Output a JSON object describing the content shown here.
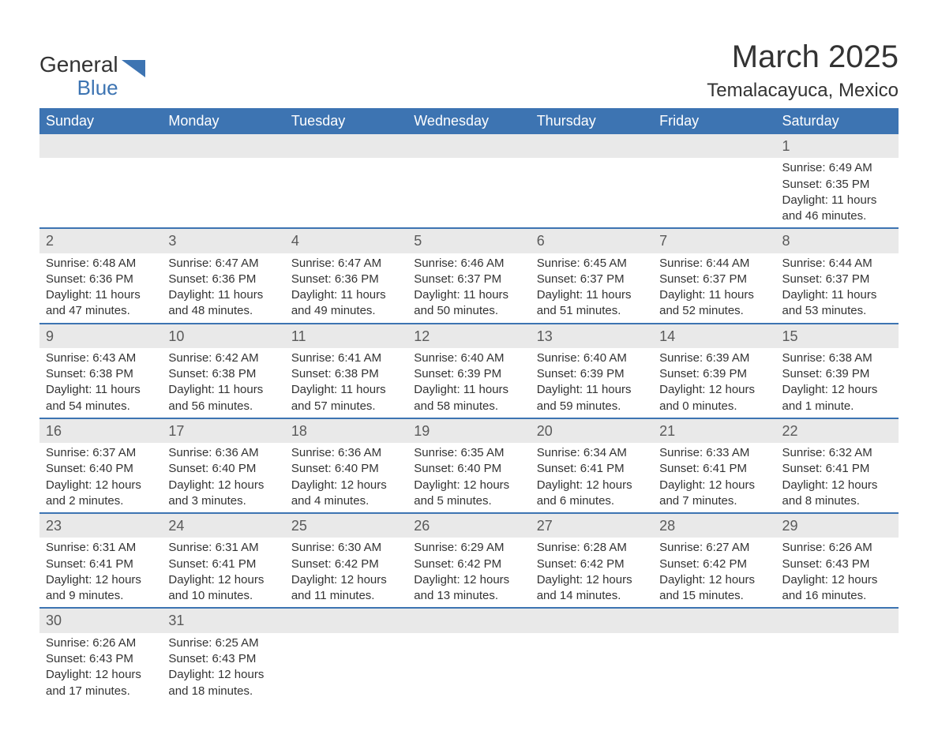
{
  "logo": {
    "general": "General",
    "blue": "Blue"
  },
  "title": "March 2025",
  "location": "Temalacayuca, Mexico",
  "colors": {
    "header_bg": "#3d74b2",
    "header_text": "#ffffff",
    "daynum_bg": "#e9e9e9",
    "border": "#3d74b2",
    "text": "#333333"
  },
  "day_labels": [
    "Sunday",
    "Monday",
    "Tuesday",
    "Wednesday",
    "Thursday",
    "Friday",
    "Saturday"
  ],
  "weeks": [
    [
      null,
      null,
      null,
      null,
      null,
      null,
      {
        "n": "1",
        "sunrise": "Sunrise: 6:49 AM",
        "sunset": "Sunset: 6:35 PM",
        "day1": "Daylight: 11 hours",
        "day2": "and 46 minutes."
      }
    ],
    [
      {
        "n": "2",
        "sunrise": "Sunrise: 6:48 AM",
        "sunset": "Sunset: 6:36 PM",
        "day1": "Daylight: 11 hours",
        "day2": "and 47 minutes."
      },
      {
        "n": "3",
        "sunrise": "Sunrise: 6:47 AM",
        "sunset": "Sunset: 6:36 PM",
        "day1": "Daylight: 11 hours",
        "day2": "and 48 minutes."
      },
      {
        "n": "4",
        "sunrise": "Sunrise: 6:47 AM",
        "sunset": "Sunset: 6:36 PM",
        "day1": "Daylight: 11 hours",
        "day2": "and 49 minutes."
      },
      {
        "n": "5",
        "sunrise": "Sunrise: 6:46 AM",
        "sunset": "Sunset: 6:37 PM",
        "day1": "Daylight: 11 hours",
        "day2": "and 50 minutes."
      },
      {
        "n": "6",
        "sunrise": "Sunrise: 6:45 AM",
        "sunset": "Sunset: 6:37 PM",
        "day1": "Daylight: 11 hours",
        "day2": "and 51 minutes."
      },
      {
        "n": "7",
        "sunrise": "Sunrise: 6:44 AM",
        "sunset": "Sunset: 6:37 PM",
        "day1": "Daylight: 11 hours",
        "day2": "and 52 minutes."
      },
      {
        "n": "8",
        "sunrise": "Sunrise: 6:44 AM",
        "sunset": "Sunset: 6:37 PM",
        "day1": "Daylight: 11 hours",
        "day2": "and 53 minutes."
      }
    ],
    [
      {
        "n": "9",
        "sunrise": "Sunrise: 6:43 AM",
        "sunset": "Sunset: 6:38 PM",
        "day1": "Daylight: 11 hours",
        "day2": "and 54 minutes."
      },
      {
        "n": "10",
        "sunrise": "Sunrise: 6:42 AM",
        "sunset": "Sunset: 6:38 PM",
        "day1": "Daylight: 11 hours",
        "day2": "and 56 minutes."
      },
      {
        "n": "11",
        "sunrise": "Sunrise: 6:41 AM",
        "sunset": "Sunset: 6:38 PM",
        "day1": "Daylight: 11 hours",
        "day2": "and 57 minutes."
      },
      {
        "n": "12",
        "sunrise": "Sunrise: 6:40 AM",
        "sunset": "Sunset: 6:39 PM",
        "day1": "Daylight: 11 hours",
        "day2": "and 58 minutes."
      },
      {
        "n": "13",
        "sunrise": "Sunrise: 6:40 AM",
        "sunset": "Sunset: 6:39 PM",
        "day1": "Daylight: 11 hours",
        "day2": "and 59 minutes."
      },
      {
        "n": "14",
        "sunrise": "Sunrise: 6:39 AM",
        "sunset": "Sunset: 6:39 PM",
        "day1": "Daylight: 12 hours",
        "day2": "and 0 minutes."
      },
      {
        "n": "15",
        "sunrise": "Sunrise: 6:38 AM",
        "sunset": "Sunset: 6:39 PM",
        "day1": "Daylight: 12 hours",
        "day2": "and 1 minute."
      }
    ],
    [
      {
        "n": "16",
        "sunrise": "Sunrise: 6:37 AM",
        "sunset": "Sunset: 6:40 PM",
        "day1": "Daylight: 12 hours",
        "day2": "and 2 minutes."
      },
      {
        "n": "17",
        "sunrise": "Sunrise: 6:36 AM",
        "sunset": "Sunset: 6:40 PM",
        "day1": "Daylight: 12 hours",
        "day2": "and 3 minutes."
      },
      {
        "n": "18",
        "sunrise": "Sunrise: 6:36 AM",
        "sunset": "Sunset: 6:40 PM",
        "day1": "Daylight: 12 hours",
        "day2": "and 4 minutes."
      },
      {
        "n": "19",
        "sunrise": "Sunrise: 6:35 AM",
        "sunset": "Sunset: 6:40 PM",
        "day1": "Daylight: 12 hours",
        "day2": "and 5 minutes."
      },
      {
        "n": "20",
        "sunrise": "Sunrise: 6:34 AM",
        "sunset": "Sunset: 6:41 PM",
        "day1": "Daylight: 12 hours",
        "day2": "and 6 minutes."
      },
      {
        "n": "21",
        "sunrise": "Sunrise: 6:33 AM",
        "sunset": "Sunset: 6:41 PM",
        "day1": "Daylight: 12 hours",
        "day2": "and 7 minutes."
      },
      {
        "n": "22",
        "sunrise": "Sunrise: 6:32 AM",
        "sunset": "Sunset: 6:41 PM",
        "day1": "Daylight: 12 hours",
        "day2": "and 8 minutes."
      }
    ],
    [
      {
        "n": "23",
        "sunrise": "Sunrise: 6:31 AM",
        "sunset": "Sunset: 6:41 PM",
        "day1": "Daylight: 12 hours",
        "day2": "and 9 minutes."
      },
      {
        "n": "24",
        "sunrise": "Sunrise: 6:31 AM",
        "sunset": "Sunset: 6:41 PM",
        "day1": "Daylight: 12 hours",
        "day2": "and 10 minutes."
      },
      {
        "n": "25",
        "sunrise": "Sunrise: 6:30 AM",
        "sunset": "Sunset: 6:42 PM",
        "day1": "Daylight: 12 hours",
        "day2": "and 11 minutes."
      },
      {
        "n": "26",
        "sunrise": "Sunrise: 6:29 AM",
        "sunset": "Sunset: 6:42 PM",
        "day1": "Daylight: 12 hours",
        "day2": "and 13 minutes."
      },
      {
        "n": "27",
        "sunrise": "Sunrise: 6:28 AM",
        "sunset": "Sunset: 6:42 PM",
        "day1": "Daylight: 12 hours",
        "day2": "and 14 minutes."
      },
      {
        "n": "28",
        "sunrise": "Sunrise: 6:27 AM",
        "sunset": "Sunset: 6:42 PM",
        "day1": "Daylight: 12 hours",
        "day2": "and 15 minutes."
      },
      {
        "n": "29",
        "sunrise": "Sunrise: 6:26 AM",
        "sunset": "Sunset: 6:43 PM",
        "day1": "Daylight: 12 hours",
        "day2": "and 16 minutes."
      }
    ],
    [
      {
        "n": "30",
        "sunrise": "Sunrise: 6:26 AM",
        "sunset": "Sunset: 6:43 PM",
        "day1": "Daylight: 12 hours",
        "day2": "and 17 minutes."
      },
      {
        "n": "31",
        "sunrise": "Sunrise: 6:25 AM",
        "sunset": "Sunset: 6:43 PM",
        "day1": "Daylight: 12 hours",
        "day2": "and 18 minutes."
      },
      null,
      null,
      null,
      null,
      null
    ]
  ]
}
